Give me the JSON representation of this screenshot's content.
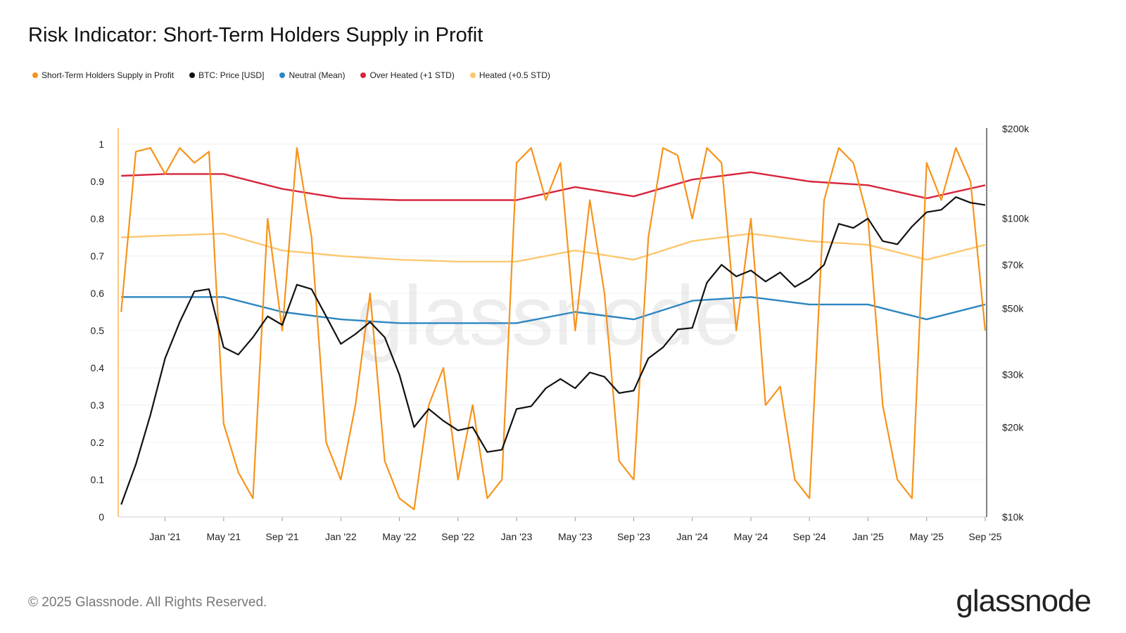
{
  "title": "Risk Indicator: Short-Term Holders Supply in Profit",
  "legend": [
    {
      "label": "Short-Term Holders Supply in Profit",
      "color": "#f7931a"
    },
    {
      "label": "BTC: Price [USD]",
      "color": "#111111"
    },
    {
      "label": "Neutral (Mean)",
      "color": "#2e86c1"
    },
    {
      "label": "Over Heated (+1 STD)",
      "color": "#d7263d"
    },
    {
      "label": "Heated (+0.5 STD)",
      "color": "#fcc870"
    }
  ],
  "watermark": "glassnode",
  "footer": "© 2025 Glassnode. All Rights Reserved.",
  "brand": "glassnode",
  "chart_data": {
    "type": "line",
    "title": "Risk Indicator: Short-Term Holders Supply in Profit",
    "x_ticks": [
      "Jan '21",
      "May '21",
      "Sep '21",
      "Jan '22",
      "May '22",
      "Sep '22",
      "Jan '23",
      "May '23",
      "Sep '23",
      "Jan '24",
      "May '24",
      "Sep '24",
      "Jan '25",
      "May '25",
      "Sep '25"
    ],
    "x_range": [
      "2020-10",
      "2025-09"
    ],
    "y_left": {
      "ticks": [
        "0",
        "0.1",
        "0.2",
        "0.3",
        "0.4",
        "0.5",
        "0.6",
        "0.7",
        "0.8",
        "0.9",
        "1"
      ],
      "range": [
        0,
        1
      ]
    },
    "y_right": {
      "scale": "log",
      "ticks": [
        "$10k",
        "$20k",
        "$30k",
        "$50k",
        "$70k",
        "$100k",
        "$200k"
      ],
      "tick_values": [
        10000,
        20000,
        30000,
        50000,
        70000,
        100000,
        200000
      ],
      "range": [
        10000,
        200000
      ]
    },
    "series": [
      {
        "name": "Short-Term Holders Supply in Profit",
        "axis": "left",
        "color": "#f7931a",
        "x": [
          "2020-10",
          "2020-11",
          "2020-12",
          "2021-01",
          "2021-02",
          "2021-03",
          "2021-04",
          "2021-05",
          "2021-06",
          "2021-07",
          "2021-08",
          "2021-09",
          "2021-10",
          "2021-11",
          "2021-12",
          "2022-01",
          "2022-02",
          "2022-03",
          "2022-04",
          "2022-05",
          "2022-06",
          "2022-07",
          "2022-08",
          "2022-09",
          "2022-10",
          "2022-11",
          "2022-12",
          "2023-01",
          "2023-02",
          "2023-03",
          "2023-04",
          "2023-05",
          "2023-06",
          "2023-07",
          "2023-08",
          "2023-09",
          "2023-10",
          "2023-11",
          "2023-12",
          "2024-01",
          "2024-02",
          "2024-03",
          "2024-04",
          "2024-05",
          "2024-06",
          "2024-07",
          "2024-08",
          "2024-09",
          "2024-10",
          "2024-11",
          "2024-12",
          "2025-01",
          "2025-02",
          "2025-03",
          "2025-04",
          "2025-05",
          "2025-06",
          "2025-07",
          "2025-08",
          "2025-09"
        ],
        "y": [
          0.55,
          0.98,
          0.99,
          0.92,
          0.99,
          0.95,
          0.98,
          0.25,
          0.12,
          0.05,
          0.8,
          0.5,
          0.99,
          0.75,
          0.2,
          0.1,
          0.3,
          0.6,
          0.15,
          0.05,
          0.02,
          0.3,
          0.4,
          0.1,
          0.3,
          0.05,
          0.1,
          0.95,
          0.99,
          0.85,
          0.95,
          0.5,
          0.85,
          0.6,
          0.15,
          0.1,
          0.75,
          0.99,
          0.97,
          0.8,
          0.99,
          0.95,
          0.5,
          0.8,
          0.3,
          0.35,
          0.1,
          0.05,
          0.85,
          0.99,
          0.95,
          0.8,
          0.3,
          0.1,
          0.05,
          0.95,
          0.85,
          0.99,
          0.9,
          0.5
        ]
      },
      {
        "name": "BTC: Price [USD]",
        "axis": "right",
        "color": "#111111",
        "x": [
          "2020-10",
          "2020-11",
          "2020-12",
          "2021-01",
          "2021-02",
          "2021-03",
          "2021-04",
          "2021-05",
          "2021-06",
          "2021-07",
          "2021-08",
          "2021-09",
          "2021-10",
          "2021-11",
          "2021-12",
          "2022-01",
          "2022-02",
          "2022-03",
          "2022-04",
          "2022-05",
          "2022-06",
          "2022-07",
          "2022-08",
          "2022-09",
          "2022-10",
          "2022-11",
          "2022-12",
          "2023-01",
          "2023-02",
          "2023-03",
          "2023-04",
          "2023-05",
          "2023-06",
          "2023-07",
          "2023-08",
          "2023-09",
          "2023-10",
          "2023-11",
          "2023-12",
          "2024-01",
          "2024-02",
          "2024-03",
          "2024-04",
          "2024-05",
          "2024-06",
          "2024-07",
          "2024-08",
          "2024-09",
          "2024-10",
          "2024-11",
          "2024-12",
          "2025-01",
          "2025-02",
          "2025-03",
          "2025-04",
          "2025-05",
          "2025-06",
          "2025-07",
          "2025-08",
          "2025-09"
        ],
        "y": [
          11000,
          15000,
          22000,
          34000,
          45000,
          57000,
          58000,
          37000,
          35000,
          40000,
          47000,
          44000,
          60000,
          58000,
          47000,
          38000,
          41000,
          45000,
          40000,
          30000,
          20000,
          23000,
          21000,
          19500,
          20000,
          16500,
          16800,
          23000,
          23500,
          27000,
          29000,
          27000,
          30500,
          29500,
          26000,
          26500,
          34000,
          37000,
          42500,
          43000,
          61000,
          70000,
          64000,
          67000,
          61500,
          66000,
          59000,
          63000,
          70000,
          96000,
          93000,
          100000,
          84000,
          82000,
          94000,
          105000,
          107000,
          118000,
          113000,
          111000
        ]
      },
      {
        "name": "Neutral (Mean)",
        "axis": "left",
        "color": "#2e86c1",
        "x": [
          "2020-10",
          "2021-01",
          "2021-05",
          "2021-09",
          "2022-01",
          "2022-05",
          "2022-09",
          "2023-01",
          "2023-05",
          "2023-09",
          "2024-01",
          "2024-05",
          "2024-09",
          "2025-01",
          "2025-05",
          "2025-09"
        ],
        "y": [
          0.59,
          0.59,
          0.59,
          0.55,
          0.53,
          0.52,
          0.52,
          0.52,
          0.55,
          0.53,
          0.58,
          0.59,
          0.57,
          0.57,
          0.53,
          0.57
        ]
      },
      {
        "name": "Over Heated (+1 STD)",
        "axis": "left",
        "color": "#d7263d",
        "x": [
          "2020-10",
          "2021-01",
          "2021-05",
          "2021-09",
          "2022-01",
          "2022-05",
          "2022-09",
          "2023-01",
          "2023-05",
          "2023-09",
          "2024-01",
          "2024-05",
          "2024-09",
          "2025-01",
          "2025-05",
          "2025-09"
        ],
        "y": [
          0.915,
          0.92,
          0.92,
          0.88,
          0.855,
          0.85,
          0.85,
          0.85,
          0.885,
          0.86,
          0.905,
          0.925,
          0.9,
          0.89,
          0.855,
          0.89
        ]
      },
      {
        "name": "Heated (+0.5 STD)",
        "axis": "left",
        "color": "#fcc870",
        "x": [
          "2020-10",
          "2021-01",
          "2021-05",
          "2021-09",
          "2022-01",
          "2022-05",
          "2022-09",
          "2023-01",
          "2023-05",
          "2023-09",
          "2024-01",
          "2024-05",
          "2024-09",
          "2025-01",
          "2025-05",
          "2025-09"
        ],
        "y": [
          0.75,
          0.755,
          0.76,
          0.715,
          0.7,
          0.69,
          0.685,
          0.685,
          0.715,
          0.69,
          0.74,
          0.76,
          0.74,
          0.73,
          0.69,
          0.73
        ]
      }
    ]
  }
}
